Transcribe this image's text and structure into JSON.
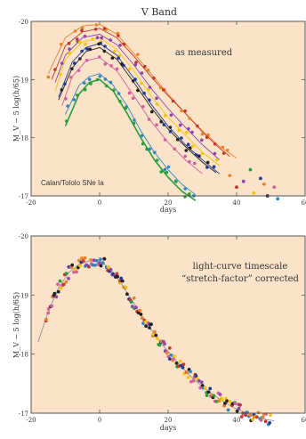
{
  "figure": {
    "band_title": "V Band",
    "background_color": "#fbe3c9",
    "frame_color": "#555555"
  },
  "chart_data": [
    {
      "type": "line",
      "title": "V Band",
      "annotation": "as measured",
      "corner_label": "Calan/Tololo SNe Ia",
      "xlabel": "days",
      "ylabel": "M_V − 5 log(h/65)",
      "xlim": [
        -20,
        60
      ],
      "ylim": [
        -20,
        -17
      ],
      "y_inverted": true,
      "xticks": [
        -20,
        0,
        20,
        40,
        60
      ],
      "yticks": [
        -20,
        -19,
        -18,
        -17
      ],
      "xtick_labels": [
        "-20",
        "0",
        "20",
        "40",
        "60"
      ],
      "ytick_labels": [
        "-20",
        "-19",
        "-18",
        "-17"
      ],
      "series": [
        {
          "color": "#e8822a",
          "x": [
            -15,
            -10,
            -5,
            0,
            5,
            10,
            15,
            20,
            25,
            30,
            35,
            40
          ],
          "y": [
            -19.1,
            -19.72,
            -19.92,
            -19.95,
            -19.78,
            -19.45,
            -19.1,
            -18.75,
            -18.42,
            -18.12,
            -17.85,
            -17.65
          ]
        },
        {
          "color": "#c0392b",
          "x": [
            -14,
            -10,
            -5,
            0,
            5,
            10,
            15,
            20,
            25,
            30,
            35,
            38
          ],
          "y": [
            -19.0,
            -19.58,
            -19.82,
            -19.88,
            -19.72,
            -19.4,
            -19.05,
            -18.72,
            -18.42,
            -18.1,
            -17.82,
            -17.68
          ]
        },
        {
          "color": "#8e44ad",
          "x": [
            -13,
            -10,
            -5,
            0,
            5,
            10,
            15,
            20,
            25,
            30,
            35
          ],
          "y": [
            -18.95,
            -19.42,
            -19.72,
            -19.78,
            -19.6,
            -19.25,
            -18.85,
            -18.5,
            -18.18,
            -17.88,
            -17.62
          ]
        },
        {
          "color": "#f1c40f",
          "x": [
            -13,
            -10,
            -5,
            0,
            5,
            10,
            15,
            20,
            25,
            30,
            35
          ],
          "y": [
            -18.8,
            -19.35,
            -19.65,
            -19.72,
            -19.52,
            -19.15,
            -18.72,
            -18.35,
            -18.05,
            -17.75,
            -17.52
          ]
        },
        {
          "color": "#1f3a93",
          "x": [
            -12,
            -8,
            -4,
            0,
            5,
            10,
            15,
            20,
            25,
            30,
            35
          ],
          "y": [
            -18.7,
            -19.3,
            -19.55,
            -19.62,
            -19.42,
            -19.02,
            -18.58,
            -18.2,
            -17.88,
            -17.62,
            -17.38
          ]
        },
        {
          "color": "#222222",
          "x": [
            -12,
            -8,
            -4,
            0,
            5,
            10,
            15,
            20,
            25,
            30,
            34
          ],
          "y": [
            -18.65,
            -19.2,
            -19.48,
            -19.55,
            -19.35,
            -18.95,
            -18.52,
            -18.15,
            -17.85,
            -17.58,
            -17.4
          ]
        },
        {
          "color": "#d35f9c",
          "x": [
            -11,
            -8,
            -4,
            0,
            5,
            10,
            15,
            20,
            25,
            30
          ],
          "y": [
            -18.55,
            -19.05,
            -19.32,
            -19.38,
            -19.15,
            -18.72,
            -18.28,
            -17.92,
            -17.62,
            -17.38
          ]
        },
        {
          "color": "#2e86c1",
          "x": [
            -10,
            -6,
            -3,
            0,
            4,
            8,
            12,
            16,
            20,
            24,
            28
          ],
          "y": [
            -18.4,
            -18.9,
            -19.05,
            -19.1,
            -18.9,
            -18.55,
            -18.12,
            -17.75,
            -17.45,
            -17.2,
            -17.02
          ]
        },
        {
          "color": "#2a9d3a",
          "x": [
            -10,
            -6,
            -3,
            0,
            4,
            8,
            12,
            16,
            20,
            24,
            28
          ],
          "y": [
            -18.2,
            -18.75,
            -18.95,
            -19.0,
            -18.8,
            -18.42,
            -18.0,
            -17.62,
            -17.32,
            -17.08,
            -16.92
          ]
        }
      ]
    },
    {
      "type": "scatter",
      "annotation_line1": "light-curve timescale",
      "annotation_line2": "“stretch-factor” corrected",
      "xlabel": "days",
      "ylabel": "M_V − 5 log(h/65)",
      "xlim": [
        -20,
        60
      ],
      "ylim": [
        -20,
        -17
      ],
      "y_inverted": true,
      "xticks": [
        -20,
        0,
        20,
        40,
        60
      ],
      "yticks": [
        -20,
        -19,
        -18,
        -17
      ],
      "xtick_labels": [
        "-20",
        "0",
        "20",
        "40",
        "60"
      ],
      "ytick_labels": [
        "-20",
        "-19",
        "-18",
        "-17"
      ],
      "template_curve": {
        "color": "#999999",
        "x": [
          -18,
          -15,
          -12,
          -9,
          -6,
          -3,
          0,
          3,
          6,
          9,
          12,
          15,
          18,
          21,
          24,
          27,
          30,
          33,
          36,
          39,
          42,
          45,
          48,
          51
        ],
        "y": [
          -18.2,
          -18.72,
          -19.12,
          -19.38,
          -19.52,
          -19.58,
          -19.58,
          -19.45,
          -19.22,
          -18.95,
          -18.68,
          -18.42,
          -18.18,
          -17.98,
          -17.78,
          -17.6,
          -17.45,
          -17.32,
          -17.2,
          -17.1,
          -17.02,
          -16.95,
          -16.9,
          -16.87
        ]
      },
      "palette": [
        "#e8822a",
        "#c0392b",
        "#8e44ad",
        "#f1c40f",
        "#1f3a93",
        "#222222",
        "#d35f9c",
        "#2e86c1",
        "#2a9d3a"
      ],
      "scatter_spread": 0.1
    }
  ]
}
